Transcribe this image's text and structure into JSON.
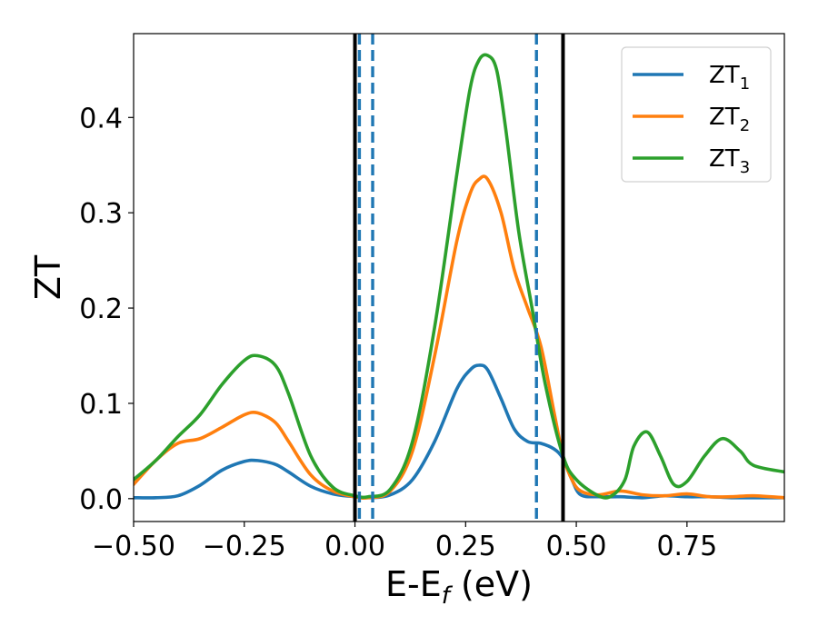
{
  "chart_data": {
    "type": "line",
    "xlabel": {
      "main": "E-E",
      "sub": "f",
      "unit": "(eV)"
    },
    "ylabel": "ZT",
    "xlim": [
      -0.5,
      0.97
    ],
    "ylim": [
      -0.024,
      0.488
    ],
    "xticks": [
      -0.5,
      -0.25,
      0.0,
      0.25,
      0.5,
      0.75
    ],
    "xtick_labels": [
      "−0.50",
      "−0.25",
      "0.00",
      "0.25",
      "0.50",
      "0.75"
    ],
    "yticks": [
      0.0,
      0.1,
      0.2,
      0.3,
      0.4
    ],
    "ytick_labels": [
      "0.0",
      "0.1",
      "0.2",
      "0.3",
      "0.4"
    ],
    "legend_position": "top-right",
    "vertical_lines": [
      {
        "x": 0.0,
        "style": "solid",
        "color": "#000000"
      },
      {
        "x": 0.47,
        "style": "solid",
        "color": "#000000"
      },
      {
        "x": 0.01,
        "style": "dashed",
        "color": "#1f77b4"
      },
      {
        "x": 0.04,
        "style": "dashed",
        "color": "#1f77b4"
      },
      {
        "x": 0.41,
        "style": "dashed",
        "color": "#1f77b4"
      }
    ],
    "series": [
      {
        "name": "ZT",
        "name_sub": "1",
        "color": "#1f77b4",
        "x": [
          -0.5,
          -0.45,
          -0.4,
          -0.35,
          -0.3,
          -0.25,
          -0.22,
          -0.18,
          -0.15,
          -0.1,
          -0.05,
          0.0,
          0.03,
          0.08,
          0.13,
          0.18,
          0.23,
          0.26,
          0.28,
          0.3,
          0.33,
          0.36,
          0.39,
          0.42,
          0.45,
          0.47,
          0.49,
          0.51,
          0.55,
          0.6,
          0.65,
          0.7,
          0.75,
          0.8,
          0.85,
          0.9,
          0.97
        ],
        "y": [
          0.001,
          0.001,
          0.003,
          0.014,
          0.03,
          0.039,
          0.04,
          0.036,
          0.028,
          0.013,
          0.005,
          0.002,
          0.001,
          0.004,
          0.02,
          0.06,
          0.115,
          0.135,
          0.14,
          0.135,
          0.105,
          0.073,
          0.06,
          0.058,
          0.052,
          0.042,
          0.02,
          0.004,
          0.002,
          0.002,
          0.001,
          0.003,
          0.002,
          0.002,
          0.001,
          0.001,
          0.001
        ]
      },
      {
        "name": "ZT",
        "name_sub": "2",
        "color": "#ff7f0e",
        "x": [
          -0.5,
          -0.45,
          -0.4,
          -0.35,
          -0.3,
          -0.25,
          -0.22,
          -0.18,
          -0.15,
          -0.1,
          -0.05,
          0.0,
          0.03,
          0.08,
          0.13,
          0.18,
          0.23,
          0.26,
          0.28,
          0.3,
          0.33,
          0.36,
          0.39,
          0.42,
          0.45,
          0.47,
          0.49,
          0.51,
          0.55,
          0.6,
          0.65,
          0.7,
          0.75,
          0.8,
          0.85,
          0.9,
          0.97
        ],
        "y": [
          0.015,
          0.04,
          0.058,
          0.063,
          0.075,
          0.088,
          0.09,
          0.08,
          0.06,
          0.025,
          0.008,
          0.002,
          0.001,
          0.008,
          0.05,
          0.15,
          0.27,
          0.32,
          0.335,
          0.335,
          0.3,
          0.24,
          0.2,
          0.16,
          0.09,
          0.045,
          0.02,
          0.008,
          0.004,
          0.008,
          0.004,
          0.003,
          0.005,
          0.002,
          0.002,
          0.003,
          0.001
        ]
      },
      {
        "name": "ZT",
        "name_sub": "3",
        "color": "#2ca02c",
        "x": [
          -0.5,
          -0.45,
          -0.4,
          -0.35,
          -0.3,
          -0.25,
          -0.22,
          -0.18,
          -0.15,
          -0.1,
          -0.05,
          0.0,
          0.03,
          0.08,
          0.13,
          0.18,
          0.23,
          0.26,
          0.28,
          0.3,
          0.32,
          0.34,
          0.37,
          0.4,
          0.43,
          0.47,
          0.5,
          0.55,
          0.58,
          0.61,
          0.63,
          0.66,
          0.69,
          0.72,
          0.75,
          0.79,
          0.83,
          0.87,
          0.9,
          0.97
        ],
        "y": [
          0.02,
          0.04,
          0.065,
          0.088,
          0.12,
          0.145,
          0.15,
          0.14,
          0.11,
          0.045,
          0.012,
          0.003,
          0.002,
          0.01,
          0.06,
          0.18,
          0.34,
          0.43,
          0.46,
          0.465,
          0.45,
          0.39,
          0.28,
          0.2,
          0.12,
          0.045,
          0.02,
          0.003,
          0.003,
          0.02,
          0.055,
          0.07,
          0.045,
          0.015,
          0.018,
          0.045,
          0.063,
          0.05,
          0.035,
          0.028
        ]
      }
    ]
  }
}
